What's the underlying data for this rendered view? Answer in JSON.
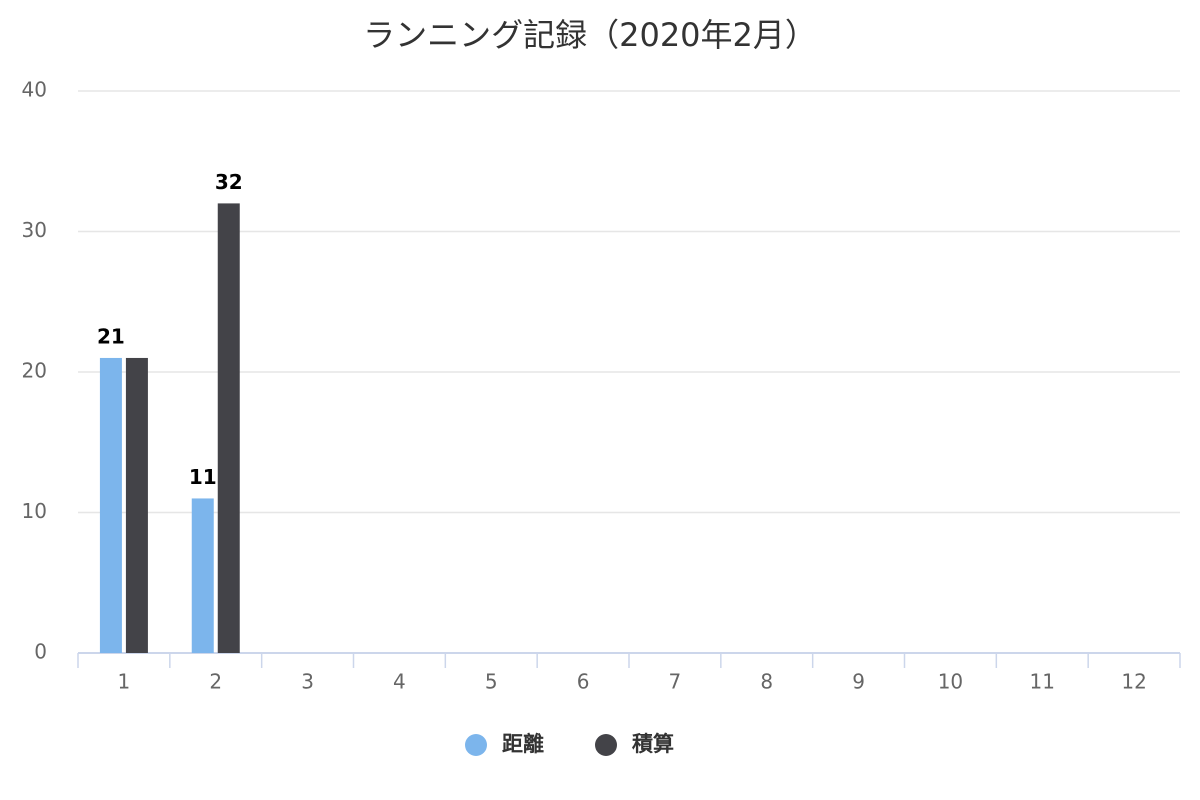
{
  "chart_data": {
    "type": "bar",
    "title": "ランニング記録（2020年2月）",
    "categories": [
      "1",
      "2",
      "3",
      "4",
      "5",
      "6",
      "7",
      "8",
      "9",
      "10",
      "11",
      "12"
    ],
    "series": [
      {
        "name": "距離",
        "color": "#7cb5ec",
        "values": [
          21,
          11,
          null,
          null,
          null,
          null,
          null,
          null,
          null,
          null,
          null,
          null
        ]
      },
      {
        "name": "積算",
        "color": "#434348",
        "values": [
          21,
          32,
          null,
          null,
          null,
          null,
          null,
          null,
          null,
          null,
          null,
          null
        ]
      }
    ],
    "ylim": [
      0,
      40
    ],
    "yticks": [
      0,
      10,
      20,
      30,
      40
    ],
    "grid": true,
    "legend": "bottom"
  }
}
